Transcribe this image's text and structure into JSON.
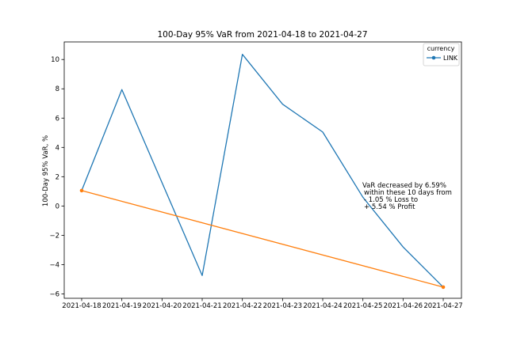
{
  "chart_data": {
    "type": "line",
    "title": "100-Day 95% VaR from 2021-04-18 to 2021-04-27",
    "xlabel": "",
    "ylabel": "100-Day 95% VaR, %",
    "categories": [
      "2021-04-18",
      "2021-04-19",
      "2021-04-20",
      "2021-04-21",
      "2021-04-22",
      "2021-04-23",
      "2021-04-24",
      "2021-04-25",
      "2021-04-26",
      "2021-04-27"
    ],
    "ylim": [
      -6.3,
      11.2
    ],
    "yticks": [
      -6,
      -4,
      -2,
      0,
      2,
      4,
      6,
      8,
      10
    ],
    "grid": false,
    "series": [
      {
        "name": "LINK",
        "color": "#1f77b4",
        "values": [
          1.05,
          7.95,
          1.6,
          -4.75,
          10.35,
          6.95,
          5.05,
          0.6,
          -2.8,
          -5.54
        ]
      },
      {
        "name": "",
        "color": "#ff7f0e",
        "marker": true,
        "points": [
          {
            "x": "2021-04-18",
            "y": 1.05
          },
          {
            "x": "2021-04-27",
            "y": -5.54
          }
        ]
      }
    ],
    "legend": {
      "title": "currency",
      "entries": [
        "LINK"
      ],
      "placement": "top-right"
    },
    "annotation": {
      "lines": [
        "VaR decreased by 6.59%",
        "within these 10 days from",
        "- 1.05 % Loss to",
        "+ 5.54 % Profit"
      ]
    }
  }
}
